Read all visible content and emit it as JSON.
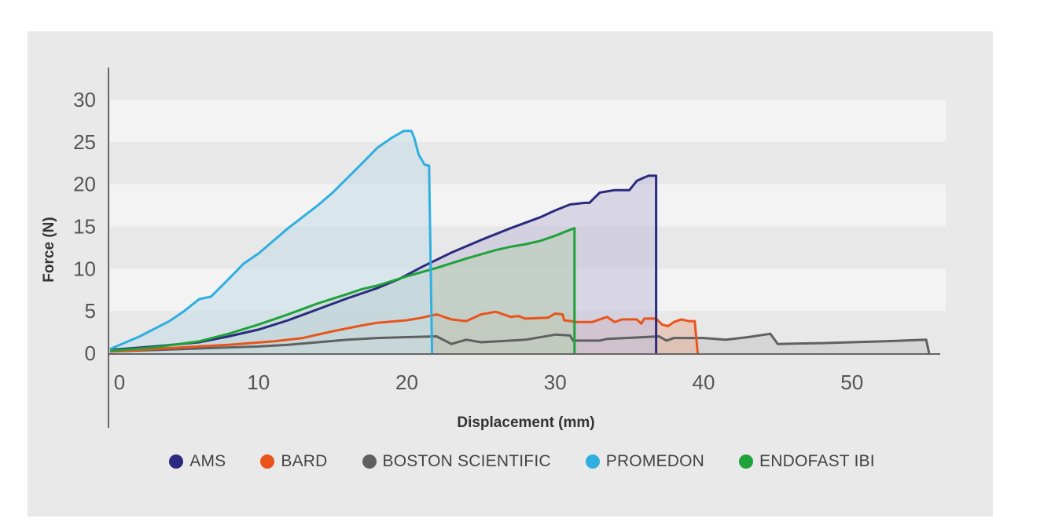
{
  "chart_data": {
    "type": "area",
    "title": "",
    "xlabel": "Displacement (mm)",
    "ylabel": "Force (N)",
    "xlim": [
      0,
      56
    ],
    "ylim": [
      0,
      30
    ],
    "xticks": [
      0,
      10,
      20,
      30,
      40,
      50
    ],
    "yticks": [
      0,
      5,
      10,
      15,
      20,
      25,
      30
    ],
    "band_colors": [
      "#f3f3f3",
      "#e8e8e8"
    ],
    "series": [
      {
        "name": "BOSTON SCIENTIFIC",
        "color": "#5f6161",
        "fill": "#c9cacb",
        "points": [
          [
            0,
            0.2
          ],
          [
            5,
            0.5
          ],
          [
            10,
            0.8
          ],
          [
            12,
            1.0
          ],
          [
            14,
            1.3
          ],
          [
            16,
            1.6
          ],
          [
            18,
            1.8
          ],
          [
            20,
            1.9
          ],
          [
            22,
            2.0
          ],
          [
            23,
            1.1
          ],
          [
            24,
            1.6
          ],
          [
            25,
            1.3
          ],
          [
            27,
            1.5
          ],
          [
            28,
            1.6
          ],
          [
            30,
            2.2
          ],
          [
            31,
            2.1
          ],
          [
            31.2,
            1.5
          ],
          [
            33,
            1.5
          ],
          [
            33.5,
            1.7
          ],
          [
            36,
            1.9
          ],
          [
            37,
            2.0
          ],
          [
            37.5,
            1.5
          ],
          [
            38,
            1.8
          ],
          [
            40,
            1.8
          ],
          [
            41.5,
            1.6
          ],
          [
            43,
            1.9
          ],
          [
            44.5,
            2.3
          ],
          [
            45,
            1.1
          ],
          [
            48,
            1.2
          ],
          [
            52,
            1.4
          ],
          [
            55,
            1.6
          ],
          [
            55.2,
            0
          ]
        ]
      },
      {
        "name": "BARD",
        "color": "#e8541c",
        "fill": "#e3b6a3",
        "points": [
          [
            0,
            0.2
          ],
          [
            4,
            0.6
          ],
          [
            8,
            1.0
          ],
          [
            11,
            1.4
          ],
          [
            13,
            1.8
          ],
          [
            15,
            2.6
          ],
          [
            17,
            3.3
          ],
          [
            18,
            3.6
          ],
          [
            20,
            3.9
          ],
          [
            21,
            4.2
          ],
          [
            22,
            4.6
          ],
          [
            23,
            4.0
          ],
          [
            24,
            3.8
          ],
          [
            25,
            4.6
          ],
          [
            26,
            4.9
          ],
          [
            27,
            4.3
          ],
          [
            27.5,
            4.4
          ],
          [
            28,
            4.1
          ],
          [
            29.5,
            4.2
          ],
          [
            30,
            4.7
          ],
          [
            30.5,
            4.6
          ],
          [
            30.6,
            3.9
          ],
          [
            31.5,
            3.7
          ],
          [
            32.5,
            3.7
          ],
          [
            33.5,
            4.3
          ],
          [
            34,
            3.7
          ],
          [
            34.5,
            4.0
          ],
          [
            35.5,
            4.0
          ],
          [
            35.8,
            3.5
          ],
          [
            36,
            4.1
          ],
          [
            36.8,
            4.1
          ],
          [
            37.2,
            3.4
          ],
          [
            37.6,
            3.2
          ],
          [
            38,
            3.7
          ],
          [
            38.5,
            4.0
          ],
          [
            39,
            3.8
          ],
          [
            39.4,
            3.8
          ],
          [
            39.6,
            0
          ]
        ]
      },
      {
        "name": "AMS",
        "color": "#2b2a7f",
        "fill": "#c6c1dc",
        "points": [
          [
            0,
            0.4
          ],
          [
            3,
            0.8
          ],
          [
            6,
            1.3
          ],
          [
            8,
            2.0
          ],
          [
            10,
            2.8
          ],
          [
            12,
            3.9
          ],
          [
            14,
            5.2
          ],
          [
            16,
            6.5
          ],
          [
            18,
            7.7
          ],
          [
            19.5,
            8.8
          ],
          [
            21,
            10.2
          ],
          [
            23,
            11.9
          ],
          [
            25,
            13.4
          ],
          [
            27,
            14.8
          ],
          [
            29,
            16.1
          ],
          [
            30,
            16.9
          ],
          [
            31,
            17.6
          ],
          [
            32,
            17.8
          ],
          [
            32.3,
            17.8
          ],
          [
            33,
            19.0
          ],
          [
            34,
            19.3
          ],
          [
            35,
            19.3
          ],
          [
            35.5,
            20.4
          ],
          [
            36,
            20.8
          ],
          [
            36.3,
            21.0
          ],
          [
            36.8,
            21.0
          ],
          [
            36.8,
            0
          ]
        ]
      },
      {
        "name": "ENDOFAST IBI",
        "color": "#1fa23a",
        "fill": "#b9cdb7",
        "points": [
          [
            0,
            0.3
          ],
          [
            3,
            0.7
          ],
          [
            6,
            1.4
          ],
          [
            8,
            2.3
          ],
          [
            10,
            3.4
          ],
          [
            12,
            4.6
          ],
          [
            14,
            5.9
          ],
          [
            16,
            7.0
          ],
          [
            17,
            7.6
          ],
          [
            18,
            8.0
          ],
          [
            20,
            9.1
          ],
          [
            22,
            10.1
          ],
          [
            24,
            11.2
          ],
          [
            26,
            12.2
          ],
          [
            27,
            12.6
          ],
          [
            28,
            12.9
          ],
          [
            29,
            13.3
          ],
          [
            30,
            13.9
          ],
          [
            31,
            14.6
          ],
          [
            31.3,
            14.8
          ],
          [
            31.3,
            0
          ]
        ]
      },
      {
        "name": "PROMEDON",
        "color": "#2faee0",
        "fill": "#c8dfe8",
        "points": [
          [
            0,
            0.5
          ],
          [
            2,
            2.0
          ],
          [
            4,
            3.8
          ],
          [
            5,
            5.0
          ],
          [
            6,
            6.4
          ],
          [
            6.8,
            6.7
          ],
          [
            8,
            8.8
          ],
          [
            9,
            10.6
          ],
          [
            10,
            11.8
          ],
          [
            12,
            14.8
          ],
          [
            14,
            17.5
          ],
          [
            15,
            19.0
          ],
          [
            17,
            22.5
          ],
          [
            18,
            24.3
          ],
          [
            19,
            25.5
          ],
          [
            19.8,
            26.3
          ],
          [
            20.3,
            26.3
          ],
          [
            20.5,
            25.5
          ],
          [
            20.8,
            23.5
          ],
          [
            21.2,
            22.3
          ],
          [
            21.5,
            22.2
          ],
          [
            21.7,
            0
          ]
        ]
      }
    ]
  }
}
